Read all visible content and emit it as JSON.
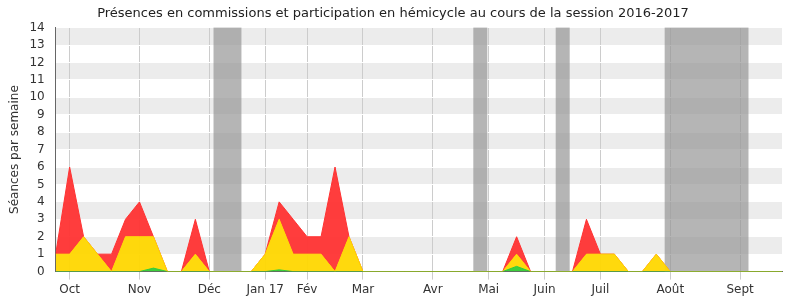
{
  "chart_data": {
    "type": "line",
    "title": "Présences en commissions et participation en hémicycle au cours de la session 2016-2017",
    "y_label": "Séances par semaine",
    "stacked": true,
    "grid": true,
    "categories": [
      null,
      "Oct",
      null,
      null,
      null,
      null,
      "Nov",
      null,
      null,
      null,
      null,
      "Déc",
      null,
      null,
      null,
      "Jan 17",
      null,
      null,
      "Fév",
      null,
      null,
      null,
      "Mar",
      null,
      null,
      null,
      null,
      "Avr",
      null,
      null,
      null,
      "Mai",
      null,
      null,
      null,
      "Juin",
      null,
      null,
      null,
      "Juil",
      null,
      null,
      null,
      null,
      "Août",
      null,
      null,
      null,
      null,
      "Sept",
      null,
      null,
      null
    ],
    "series": [
      {
        "color": "#33cc33",
        "values": [
          0,
          0,
          0,
          0,
          0,
          0,
          0,
          0.2,
          0,
          0,
          0,
          0,
          0,
          0,
          0,
          0,
          0.1,
          0,
          0,
          0,
          0,
          0,
          0,
          0,
          0,
          0,
          0,
          0,
          0,
          0,
          0,
          0,
          0,
          0.3,
          0,
          0,
          0,
          0,
          0,
          0,
          0,
          0,
          0,
          0,
          0,
          0,
          0,
          0,
          0,
          0,
          0,
          0,
          0
        ]
      },
      {
        "color": "#ffd700",
        "values": [
          1,
          1,
          2,
          1,
          0,
          2,
          2,
          1.8,
          0,
          0,
          1,
          0,
          0,
          0,
          0,
          1,
          2.9,
          1,
          1,
          1,
          0,
          2,
          0,
          0,
          0,
          0,
          0,
          0,
          0,
          0,
          0,
          0,
          0,
          0.7,
          0,
          0,
          0,
          0,
          1,
          1,
          1,
          0,
          0,
          1,
          0,
          0,
          0,
          0,
          0,
          0,
          0,
          0,
          0
        ]
      },
      {
        "color": "#ff3333",
        "values": [
          0,
          5,
          0,
          0,
          1,
          1,
          2,
          0,
          0,
          0,
          2,
          0,
          0,
          0,
          0,
          0,
          1,
          2,
          1,
          1,
          6,
          0,
          0,
          0,
          0,
          0,
          0,
          0,
          0,
          0,
          0,
          0,
          0,
          1,
          0,
          0,
          0,
          0,
          2,
          0,
          0,
          0,
          0,
          0,
          0,
          0,
          0,
          0,
          0,
          0,
          0,
          0,
          0
        ]
      }
    ],
    "shaded_periods": [
      [
        11.3,
        13.3
      ],
      [
        29.9,
        30.9
      ],
      [
        35.8,
        36.8
      ],
      [
        43.6,
        49.6
      ]
    ],
    "ylim": [
      0,
      14
    ],
    "yticks": [
      0,
      1,
      2,
      3,
      4,
      5,
      6,
      7,
      8,
      9,
      10,
      11,
      12,
      13,
      14
    ]
  }
}
